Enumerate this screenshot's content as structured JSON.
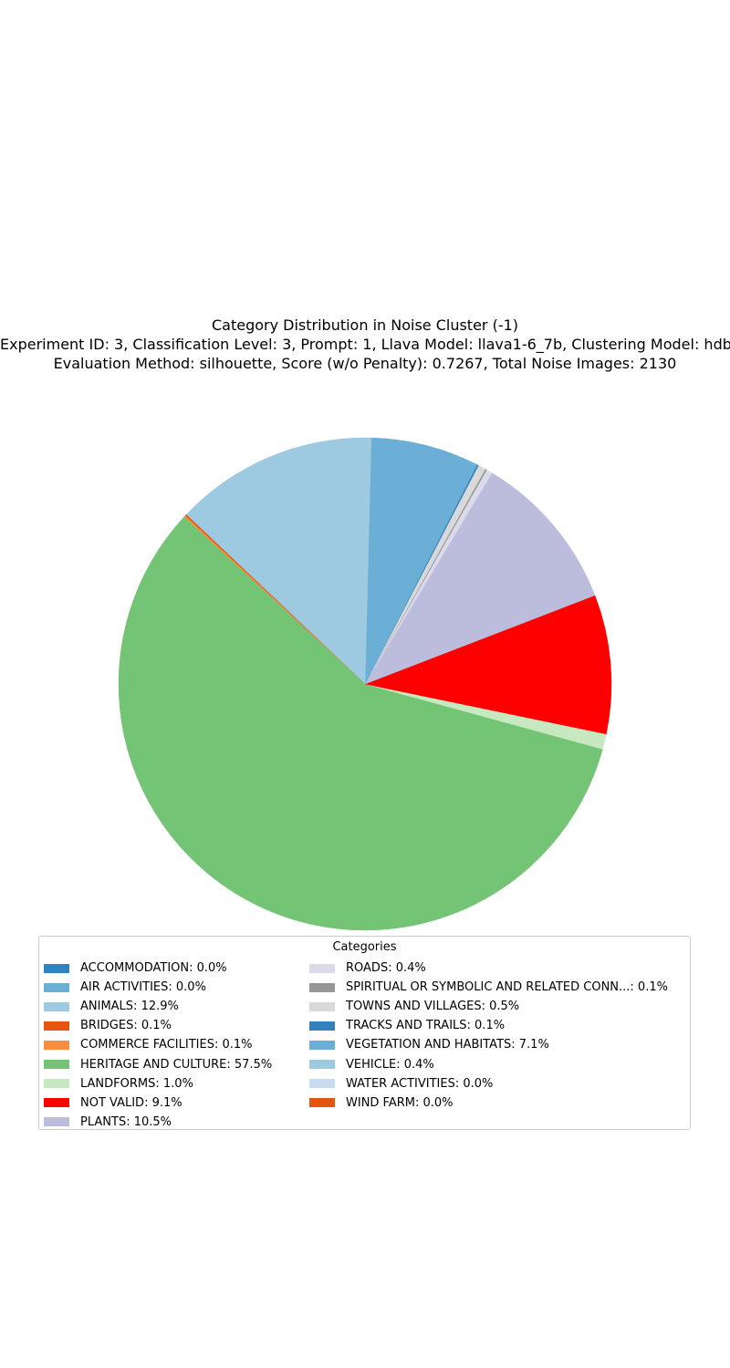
{
  "chart_data": {
    "type": "pie",
    "title": "Category Distribution in Noise Cluster (-1)",
    "subtitle_lines": [
      "Experiment ID: 3, Classification Level: 3, Prompt: 1, Llava Model: llava1-6_7b, Clustering Model: hdbscan",
      "Evaluation Method: silhouette, Score (w/o Penalty): 0.7267, Total Noise Images: 2130"
    ],
    "legend_title": "Categories",
    "legend_placement": "bottom",
    "start_angle_deg": 90,
    "direction": "counterclockwise",
    "slices": [
      {
        "label": "ACCOMMODATION: 0.0%",
        "value": 0.0,
        "color": "#3182bd"
      },
      {
        "label": "AIR ACTIVITIES: 0.0%",
        "value": 0.0,
        "color": "#6baed6"
      },
      {
        "label": "ANIMALS: 12.9%",
        "value": 12.9,
        "color": "#9ecae1"
      },
      {
        "label": "BRIDGES: 0.1%",
        "value": 0.1,
        "color": "#e6550d"
      },
      {
        "label": "COMMERCE FACILITIES: 0.1%",
        "value": 0.1,
        "color": "#fd8d3c"
      },
      {
        "label": "HERITAGE AND CULTURE: 57.5%",
        "value": 57.5,
        "color": "#74c476"
      },
      {
        "label": "LANDFORMS: 1.0%",
        "value": 1.0,
        "color": "#c7e9c0"
      },
      {
        "label": "NOT VALID: 9.1%",
        "value": 9.1,
        "color": "#ff0000"
      },
      {
        "label": "PLANTS: 10.5%",
        "value": 10.5,
        "color": "#bcbddc"
      },
      {
        "label": "ROADS: 0.4%",
        "value": 0.4,
        "color": "#dadaeb"
      },
      {
        "label": "SPIRITUAL OR SYMBOLIC AND RELATED CONN...: 0.1%",
        "value": 0.1,
        "color": "#969696"
      },
      {
        "label": "TOWNS AND VILLAGES: 0.5%",
        "value": 0.5,
        "color": "#d9d9d9"
      },
      {
        "label": "TRACKS AND TRAILS: 0.1%",
        "value": 0.1,
        "color": "#3182bd"
      },
      {
        "label": "VEGETATION AND HABITATS: 7.1%",
        "value": 7.1,
        "color": "#6baed6"
      },
      {
        "label": "VEHICLE: 0.4%",
        "value": 0.4,
        "color": "#9ecae1"
      },
      {
        "label": "WATER ACTIVITIES: 0.0%",
        "value": 0.0,
        "color": "#c6dbef"
      },
      {
        "label": "WIND FARM: 0.0%",
        "value": 0.0,
        "color": "#e6550d"
      }
    ]
  }
}
